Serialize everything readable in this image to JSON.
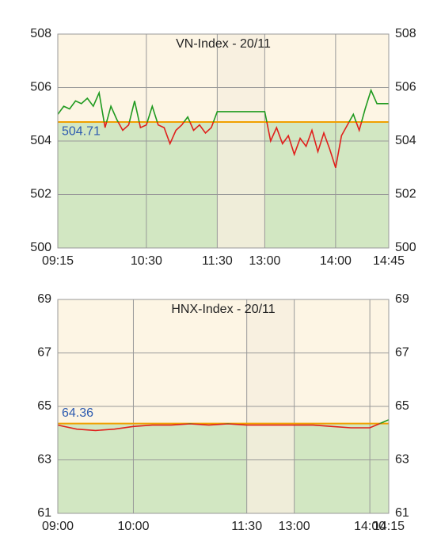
{
  "chart_data": [
    {
      "type": "line",
      "title": "VN-Index - 20/11",
      "x": [
        "09:15",
        "09:20",
        "09:25",
        "09:30",
        "09:35",
        "09:40",
        "09:45",
        "09:50",
        "09:55",
        "10:00",
        "10:05",
        "10:10",
        "10:15",
        "10:20",
        "10:25",
        "10:30",
        "10:35",
        "10:40",
        "10:45",
        "10:50",
        "10:55",
        "11:00",
        "11:05",
        "11:10",
        "11:15",
        "11:20",
        "11:25",
        "11:30",
        "13:00",
        "13:05",
        "13:10",
        "13:15",
        "13:20",
        "13:25",
        "13:30",
        "13:35",
        "13:40",
        "13:45",
        "13:50",
        "13:55",
        "14:00",
        "14:05",
        "14:10",
        "14:15",
        "14:20",
        "14:25",
        "14:30",
        "14:35",
        "14:40",
        "14:45"
      ],
      "values": [
        505.0,
        505.3,
        505.2,
        505.5,
        505.4,
        505.6,
        505.3,
        505.8,
        504.5,
        505.3,
        504.8,
        504.4,
        504.6,
        505.5,
        504.5,
        504.6,
        505.3,
        504.6,
        504.5,
        503.9,
        504.4,
        504.6,
        504.9,
        504.4,
        504.6,
        504.3,
        504.5,
        505.1,
        505.1,
        504.0,
        504.5,
        503.9,
        504.2,
        503.5,
        504.1,
        503.8,
        504.4,
        503.6,
        504.3,
        503.7,
        503.0,
        504.2,
        504.6,
        505.0,
        504.4,
        505.2,
        505.9,
        505.4,
        505.4,
        505.4
      ],
      "xlim": [
        "09:15",
        "14:45"
      ],
      "xticks": [
        "09:15",
        "10:30",
        "11:30",
        "13:00",
        "14:00",
        "14:45"
      ],
      "ylim": [
        500,
        508
      ],
      "yticks": [
        500,
        502,
        504,
        506,
        508
      ],
      "reference": 504.71,
      "up_color": "#1f9a1f",
      "down_color": "#e0201c",
      "reference_color": "#f0a000"
    },
    {
      "type": "line",
      "title": "HNX-Index - 20/11",
      "x": [
        "09:00",
        "09:15",
        "09:30",
        "09:45",
        "10:00",
        "10:15",
        "10:30",
        "10:45",
        "11:00",
        "11:15",
        "11:30",
        "13:00",
        "13:15",
        "13:30",
        "13:45",
        "14:00",
        "14:15"
      ],
      "values": [
        64.3,
        64.15,
        64.1,
        64.15,
        64.25,
        64.3,
        64.3,
        64.35,
        64.3,
        64.35,
        64.3,
        64.3,
        64.3,
        64.25,
        64.2,
        64.2,
        64.5
      ],
      "xlim": [
        "09:00",
        "14:15"
      ],
      "xticks": [
        "09:00",
        "10:00",
        "11:30",
        "13:00",
        "14:00",
        "14:15"
      ],
      "ylim": [
        61,
        69
      ],
      "yticks": [
        61,
        63,
        65,
        67,
        69
      ],
      "reference": 64.36,
      "up_color": "#1f9a1f",
      "down_color": "#e0201c",
      "reference_color": "#f0a000"
    }
  ]
}
